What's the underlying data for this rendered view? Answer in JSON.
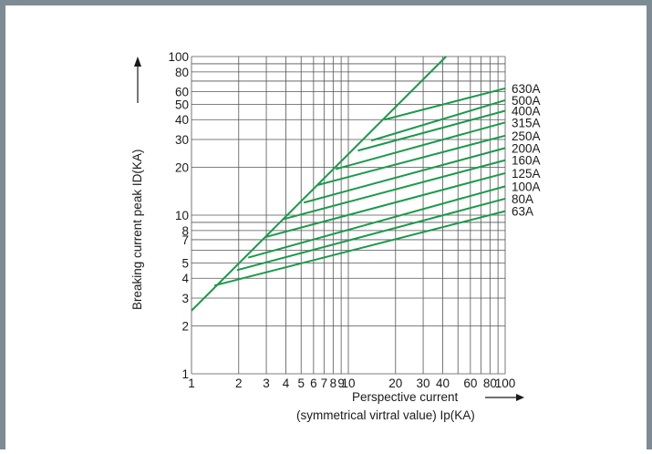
{
  "chart_data": {
    "type": "line",
    "title": "",
    "xlabel_line1": "Perspective current",
    "xlabel_line2": "(symmetrical virtral value) Ip(KA)",
    "ylabel": "Breaking current peak ID(KA)",
    "x_scale": "log",
    "y_scale": "log",
    "xlim": [
      1,
      100
    ],
    "ylim": [
      1,
      100
    ],
    "grid": true,
    "legend": "labels at right end of each line",
    "line_color": "#1a9a4a",
    "x_ticks": [
      {
        "v": 1,
        "label": "1"
      },
      {
        "v": 2,
        "label": "2"
      },
      {
        "v": 3,
        "label": "3"
      },
      {
        "v": 4,
        "label": "4"
      },
      {
        "v": 5,
        "label": "5"
      },
      {
        "v": 6,
        "label": "6"
      },
      {
        "v": 7,
        "label": "7"
      },
      {
        "v": 8,
        "label": "8"
      },
      {
        "v": 9,
        "label": "9"
      },
      {
        "v": 10,
        "label": "10"
      },
      {
        "v": 20,
        "label": "20"
      },
      {
        "v": 30,
        "label": "30"
      },
      {
        "v": 40,
        "label": "40"
      },
      {
        "v": 60,
        "label": "60"
      },
      {
        "v": 80,
        "label": "80"
      },
      {
        "v": 100,
        "label": "100"
      }
    ],
    "x_minor_lines": [
      50,
      70,
      90
    ],
    "y_ticks": [
      {
        "v": 1,
        "label": "1"
      },
      {
        "v": 2,
        "label": "2"
      },
      {
        "v": 3,
        "label": "3"
      },
      {
        "v": 4,
        "label": "4"
      },
      {
        "v": 5,
        "label": "5"
      },
      {
        "v": 7,
        "label": "7"
      },
      {
        "v": 8,
        "label": "8"
      },
      {
        "v": 10,
        "label": "10"
      },
      {
        "v": 20,
        "label": "20"
      },
      {
        "v": 30,
        "label": "30"
      },
      {
        "v": 40,
        "label": "40"
      },
      {
        "v": 50,
        "label": "50"
      },
      {
        "v": 60,
        "label": "60"
      },
      {
        "v": 80,
        "label": "80"
      },
      {
        "v": 100,
        "label": "100"
      }
    ],
    "y_minor_lines": [
      6,
      9,
      70,
      90
    ],
    "envelope": {
      "name": "",
      "x": [
        1,
        42
      ],
      "y": [
        2.5,
        100
      ]
    },
    "series": [
      {
        "name": "63A",
        "x": [
          1.4,
          100
        ],
        "y": [
          3.6,
          10.6
        ]
      },
      {
        "name": "80A",
        "x": [
          1.95,
          100
        ],
        "y": [
          4.5,
          12.7
        ]
      },
      {
        "name": "100A",
        "x": [
          2.3,
          100
        ],
        "y": [
          5.4,
          15.2
        ]
      },
      {
        "name": "125A",
        "x": [
          3.0,
          100
        ],
        "y": [
          7.3,
          18.4
        ]
      },
      {
        "name": "160A",
        "x": [
          3.8,
          100
        ],
        "y": [
          9.4,
          22.2
        ]
      },
      {
        "name": "200A",
        "x": [
          5.2,
          100
        ],
        "y": [
          12.0,
          26.5
        ]
      },
      {
        "name": "250A",
        "x": [
          6.4,
          100
        ],
        "y": [
          15.5,
          31.7
        ]
      },
      {
        "name": "315A",
        "x": [
          8.3,
          100
        ],
        "y": [
          19.5,
          38.4
        ]
      },
      {
        "name": "400A",
        "x": [
          11.5,
          100
        ],
        "y": [
          25.5,
          45.5
        ]
      },
      {
        "name": "500A",
        "x": [
          14.0,
          100
        ],
        "y": [
          29.5,
          53.0
        ]
      },
      {
        "name": "630A",
        "x": [
          17.0,
          100
        ],
        "y": [
          40.0,
          63.0
        ]
      }
    ]
  }
}
